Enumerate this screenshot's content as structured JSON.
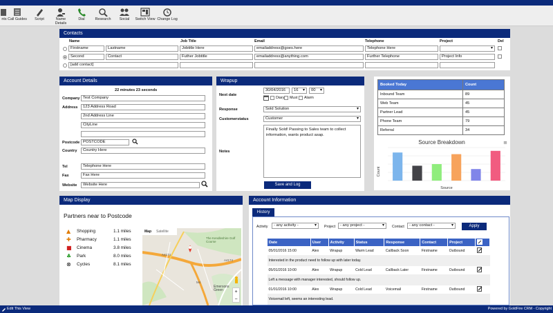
{
  "toolbar": {
    "items": [
      {
        "label": "nts",
        "icon": "contacts-icon"
      },
      {
        "label": "Call Guides",
        "icon": "call-guides-icon"
      },
      {
        "label": "Script",
        "icon": "script-icon"
      },
      {
        "label": "Name Details",
        "icon": "name-details-icon"
      },
      {
        "label": "Dial",
        "icon": "phone-icon"
      },
      {
        "label": "Research",
        "icon": "research-icon"
      },
      {
        "label": "Social",
        "icon": "social-icon"
      },
      {
        "label": "Switch View",
        "icon": "switch-view-icon"
      },
      {
        "label": "Change Log",
        "icon": "change-log-icon"
      }
    ]
  },
  "contacts": {
    "title": "Contacts",
    "headers": {
      "name": "Name",
      "job_title": "Job Title",
      "email": "Email",
      "telephone": "Telephone",
      "project": "Project",
      "del": "Del"
    },
    "rows": [
      {
        "first": "Firstname",
        "last": "Lastname",
        "job": "Jobtitle Here",
        "email": "emailaddress@goes.here",
        "tel": "Telephone Here",
        "project": ""
      },
      {
        "first": "Second",
        "last": "Contact",
        "job": "Futher Jobtitle",
        "email": "emailaddress@anything.com",
        "tel": "Further Telephone",
        "project": "Project Info"
      }
    ],
    "add_contact": "[add contact]"
  },
  "account_details": {
    "title": "Account Details",
    "timer": "22 minutes 23 seconds",
    "labels": {
      "company": "Company",
      "address": "Address",
      "postcode": "Postcode",
      "country": "Country",
      "tel": "Tel",
      "fax": "Fax",
      "website": "Website"
    },
    "company": "Test Company",
    "address1": "123 Address Road",
    "address2": "2nd Address Line",
    "address3": "CityLine",
    "postcode": "POSTCODE",
    "country": "Country Here",
    "tel": "Telephone Here",
    "fax": "Fax Here",
    "website": "Website Here"
  },
  "wrapup": {
    "title": "Wrapup",
    "labels": {
      "next_date": "Next date",
      "response": "Response",
      "customerstatus": "Customerstatus",
      "notes": "Notes"
    },
    "date": "30/04/2016",
    "hour": "16",
    "minute": "00",
    "diary_label": "Diary",
    "must_label": "Must",
    "alarm_label": "Alarm",
    "response": "Sold Solution",
    "customerstatus": "Customer",
    "notes_line1": "Finally Sold! Passing to Sales team to collect",
    "notes_line2": "information, wants product asap.",
    "save_button": "Save and Log"
  },
  "booked_today": {
    "headers": [
      "Booked Today",
      "Count"
    ],
    "rows": [
      [
        "Inbound Team",
        "89"
      ],
      [
        "Web Team",
        "45"
      ],
      [
        "Partner Lead",
        "45"
      ],
      [
        "Phone Team",
        "79"
      ],
      [
        "Referral",
        "34"
      ]
    ]
  },
  "chart_data": {
    "type": "bar",
    "title": "Source Breakdown",
    "xlabel": "Source",
    "ylabel": "Count",
    "categories": [
      "",
      "",
      "",
      "",
      "",
      ""
    ],
    "values": [
      85,
      45,
      50,
      80,
      35,
      90
    ],
    "colors": [
      "#7cb5ec",
      "#434348",
      "#90ed7d",
      "#f7a35c",
      "#8085e9",
      "#f15c80"
    ],
    "ylim": [
      0,
      100
    ],
    "grid": true,
    "menu_icon": "≡"
  },
  "map_display": {
    "title": "Map Display",
    "heading": "Partners near to Postcode",
    "partners": [
      {
        "name": "Shopping",
        "distance": "1.1 miles",
        "icon": "shopping-icon",
        "color": "#e07b00"
      },
      {
        "name": "Pharmacy",
        "distance": "1.1 miles",
        "icon": "pharmacy-icon",
        "color": "#e07b00"
      },
      {
        "name": "Cinema",
        "distance": "3.8 miles",
        "icon": "cinema-icon",
        "color": "#d02020"
      },
      {
        "name": "Park",
        "distance": "8.0 miles",
        "icon": "park-icon",
        "color": "#2e9e2e"
      },
      {
        "name": "Cycles",
        "distance": "8.1 miles",
        "icon": "cycles-icon",
        "color": "#111111"
      }
    ],
    "map_tab": "Map",
    "satellite_tab": "Satellite",
    "map_labels": [
      "The Kendleshire Golf Course",
      "Emersons Green",
      "A4174",
      "M4",
      "A4174"
    ],
    "zoom_in": "+",
    "zoom_out": "−"
  },
  "account_information": {
    "title": "Account Information",
    "tab": "History",
    "filter_labels": {
      "activity": "Activity",
      "project": "Project",
      "contact": "Contact"
    },
    "activity_value": "- any activity -",
    "project_value": "- any project -",
    "contact_value": "- any contact -",
    "apply_button": "Apply",
    "headers": [
      "Date",
      "User",
      "Activity",
      "Status",
      "Response",
      "Contact",
      "Project"
    ],
    "rows": [
      {
        "date": "05/01/2016 15:00",
        "user": "Alex",
        "activity": "Wrapup",
        "status": "Warm Lead",
        "response": "Callback Soon",
        "contact": "Firstname",
        "project": "Outbound",
        "note": "Interested in the product need to follow up with later today."
      },
      {
        "date": "05/01/2016 10:00",
        "user": "Alex",
        "activity": "Wrapup",
        "status": "Cold Lead",
        "response": "Callback Later",
        "contact": "Firstname",
        "project": "Outbound",
        "note": "Left a message with manager interested, should follow up."
      },
      {
        "date": "01/01/2016 10:00",
        "user": "Alex",
        "activity": "Wrapup",
        "status": "Cold Lead",
        "response": "Voicemail",
        "contact": "Firstname",
        "project": "Outbound",
        "note": "Voicemail left, seems an interesting lead."
      }
    ]
  },
  "footer": {
    "left": "Edit This View",
    "right": "Powered by GoldFire CRM - Copyright"
  }
}
